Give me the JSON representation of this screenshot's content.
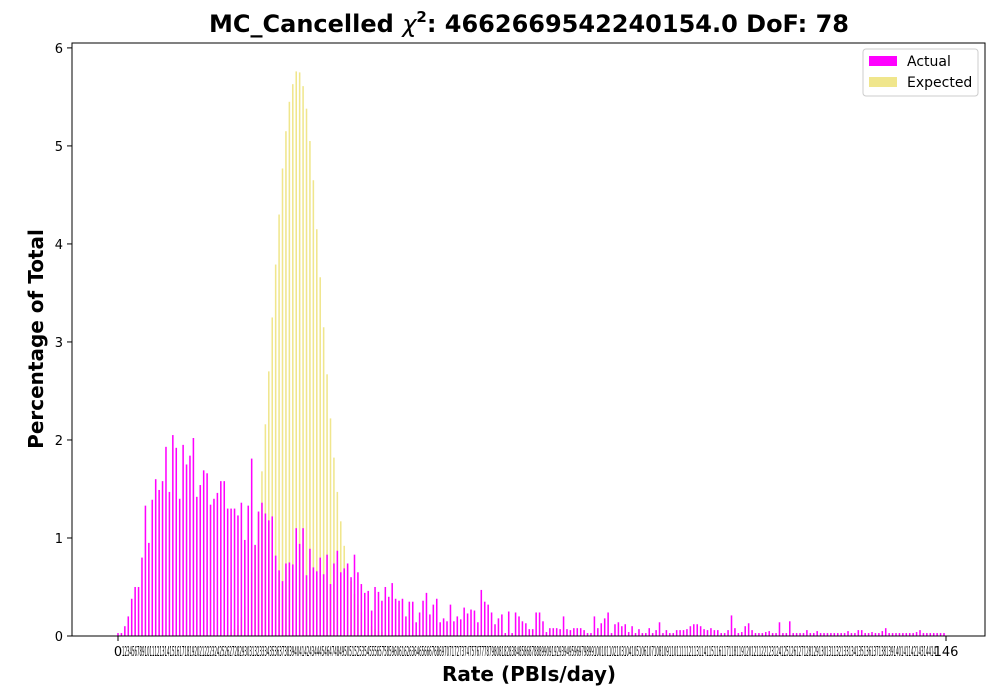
{
  "chart_data": {
    "type": "bar",
    "title": "MC_Cancelled χ²: 4662669542240154.0 DoF: 78",
    "title_parts": {
      "prefix": "MC_Cancelled ",
      "chi": "χ",
      "chi_sup": "2",
      "suffix": ": 4662669542240154.0 DoF: 78"
    },
    "xlabel": "Rate (PBIs/day)",
    "ylabel": "Percentage of Total",
    "xlim": [
      -4,
      145
    ],
    "ylim": [
      0,
      6.05
    ],
    "yticks": [
      0,
      1,
      2,
      3,
      4,
      5,
      6
    ],
    "x_first_tick": "0",
    "x_tick_cluster": "12345678910111213141516171819202122232425262728293031323334353637383940414243444546474849505152535455565758596061626364656667686970717273747576777879808182838485868788899091929394959697989910010110210310410510610710810911011111211311411511611711811912012112212312412512612712812913013113213313413513613713813914014114214314414",
    "x_last_tick": "146",
    "legend_position": "top-right",
    "series": [
      {
        "name": "Actual",
        "color": "#ff00ff",
        "values": [
          0.03,
          0.03,
          0.1,
          0.2,
          0.38,
          0.5,
          0.5,
          0.8,
          1.33,
          0.95,
          1.39,
          1.6,
          1.49,
          1.58,
          1.93,
          1.47,
          2.05,
          1.92,
          1.4,
          1.95,
          1.75,
          1.84,
          2.02,
          1.42,
          1.54,
          1.69,
          1.66,
          1.34,
          1.4,
          1.46,
          1.58,
          1.58,
          1.3,
          1.3,
          1.3,
          1.23,
          1.36,
          0.98,
          1.33,
          1.81,
          0.93,
          1.27,
          1.36,
          1.25,
          1.18,
          1.22,
          0.82,
          0.67,
          0.56,
          0.74,
          0.75,
          0.73,
          1.1,
          0.94,
          1.1,
          0.62,
          0.89,
          0.7,
          0.66,
          0.8,
          0.63,
          0.83,
          0.53,
          0.74,
          0.87,
          0.65,
          0.69,
          0.74,
          0.6,
          0.83,
          0.65,
          0.53,
          0.44,
          0.46,
          0.26,
          0.5,
          0.45,
          0.36,
          0.5,
          0.4,
          0.54,
          0.38,
          0.36,
          0.38,
          0.2,
          0.35,
          0.35,
          0.14,
          0.24,
          0.36,
          0.44,
          0.22,
          0.32,
          0.38,
          0.14,
          0.18,
          0.15,
          0.32,
          0.15,
          0.2,
          0.17,
          0.29,
          0.23,
          0.27,
          0.26,
          0.14,
          0.47,
          0.35,
          0.32,
          0.24,
          0.12,
          0.18,
          0.22,
          0.03,
          0.25,
          0.03,
          0.24,
          0.2,
          0.15,
          0.13,
          0.07,
          0.07,
          0.24,
          0.24,
          0.15,
          0.04,
          0.08,
          0.08,
          0.08,
          0.07,
          0.2,
          0.07,
          0.06,
          0.08,
          0.08,
          0.08,
          0.06,
          0.03,
          0.03,
          0.2,
          0.08,
          0.13,
          0.18,
          0.24,
          0.03,
          0.12,
          0.14,
          0.1,
          0.12,
          0.04,
          0.1,
          0.03,
          0.07,
          0.03,
          0.03,
          0.08,
          0.03,
          0.06,
          0.14,
          0.03,
          0.06,
          0.03,
          0.03,
          0.06,
          0.06,
          0.06,
          0.07,
          0.1,
          0.12,
          0.12,
          0.1,
          0.07,
          0.06,
          0.08,
          0.06,
          0.06,
          0.03,
          0.03,
          0.06,
          0.21,
          0.08,
          0.03,
          0.04,
          0.1,
          0.13,
          0.06,
          0.03,
          0.03,
          0.03,
          0.04,
          0.05,
          0.03,
          0.03,
          0.14,
          0.03,
          0.03,
          0.15,
          0.03,
          0.03,
          0.03,
          0.03,
          0.06,
          0.03,
          0.03,
          0.05,
          0.03,
          0.03,
          0.03,
          0.03,
          0.03,
          0.03,
          0.03,
          0.03,
          0.05,
          0.03,
          0.03,
          0.06,
          0.06,
          0.03,
          0.03,
          0.04,
          0.03,
          0.03,
          0.05,
          0.08,
          0.03,
          0.03,
          0.03,
          0.03,
          0.03,
          0.03,
          0.03,
          0.03,
          0.04,
          0.06,
          0.03,
          0.03,
          0.03,
          0.03,
          0.03,
          0.03,
          0.03
        ]
      },
      {
        "name": "Expected",
        "color": "#f0e68c",
        "values": [
          0,
          0,
          0,
          0,
          0,
          0,
          0,
          0,
          0,
          0,
          0,
          0,
          0,
          0,
          0,
          0,
          0,
          0,
          0,
          0,
          0,
          0,
          0,
          0,
          0,
          0,
          0,
          0,
          0,
          0,
          0,
          0.01,
          0.02,
          0.04,
          0.07,
          0.11,
          0.19,
          0.3,
          0.45,
          0.65,
          0.92,
          1.26,
          1.68,
          2.16,
          2.7,
          3.25,
          3.79,
          4.3,
          4.77,
          5.15,
          5.45,
          5.63,
          5.76,
          5.75,
          5.61,
          5.38,
          5.05,
          4.65,
          4.15,
          3.66,
          3.15,
          2.67,
          2.22,
          1.82,
          1.47,
          1.17,
          0.92,
          0.72,
          0.56,
          0.43,
          0.32,
          0.24,
          0.18,
          0.13,
          0.1,
          0.07,
          0.05,
          0.04,
          0.03,
          0.02,
          0.01,
          0.01,
          0.01,
          0,
          0,
          0,
          0,
          0,
          0,
          0,
          0,
          0,
          0,
          0,
          0,
          0,
          0,
          0,
          0,
          0,
          0,
          0,
          0,
          0,
          0,
          0,
          0,
          0,
          0,
          0,
          0,
          0,
          0,
          0,
          0,
          0,
          0,
          0,
          0,
          0,
          0,
          0,
          0,
          0,
          0,
          0,
          0,
          0,
          0,
          0,
          0,
          0,
          0,
          0,
          0,
          0,
          0,
          0,
          0,
          0,
          0,
          0,
          0,
          0,
          0,
          0,
          0,
          0,
          0,
          0,
          0,
          0,
          0,
          0,
          0,
          0,
          0,
          0,
          0,
          0,
          0,
          0,
          0,
          0,
          0,
          0,
          0,
          0,
          0,
          0,
          0,
          0,
          0,
          0,
          0,
          0,
          0,
          0,
          0,
          0,
          0,
          0,
          0,
          0,
          0,
          0,
          0,
          0,
          0,
          0,
          0,
          0,
          0,
          0,
          0,
          0,
          0,
          0,
          0,
          0,
          0,
          0,
          0,
          0,
          0,
          0,
          0,
          0,
          0,
          0,
          0,
          0,
          0,
          0,
          0,
          0,
          0,
          0,
          0,
          0,
          0,
          0,
          0,
          0,
          0,
          0,
          0,
          0,
          0,
          0,
          0,
          0,
          0,
          0,
          0,
          0,
          0,
          0,
          0,
          0,
          0,
          0,
          0,
          0,
          0,
          0,
          0,
          0,
          0,
          0,
          0,
          0,
          0,
          0,
          0,
          0,
          0,
          0,
          0,
          0,
          0,
          0
        ]
      }
    ]
  }
}
